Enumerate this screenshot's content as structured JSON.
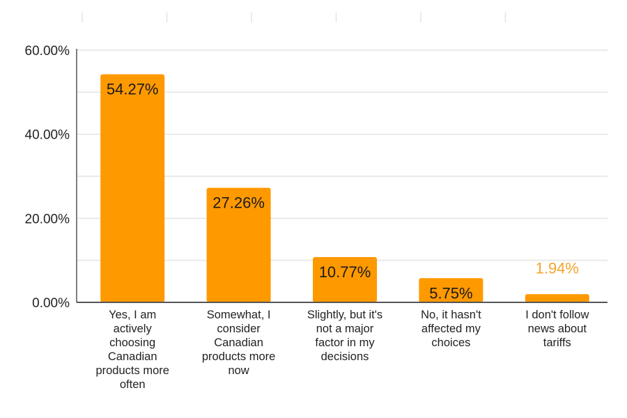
{
  "chart_data": {
    "type": "bar",
    "title": "",
    "xlabel": "",
    "ylabel": "",
    "categories": [
      [
        "Yes, I am",
        "actively",
        "choosing",
        "Canadian",
        "products more",
        "often"
      ],
      [
        "Somewhat, I",
        "consider",
        "Canadian",
        "products more",
        "now"
      ],
      [
        "Slightly, but it's",
        "not a major",
        "factor in my",
        "decisions"
      ],
      [
        "No, it hasn't",
        "affected my",
        "choices"
      ],
      [
        "I don't follow",
        "news about",
        "tariffs"
      ]
    ],
    "values": [
      54.27,
      27.26,
      10.77,
      5.75,
      1.94
    ],
    "data_labels": [
      "54.27%",
      "27.26%",
      "10.77%",
      "5.75%",
      "1.94%"
    ],
    "ylim": [
      0,
      60
    ],
    "y_ticks": [
      0,
      20,
      40,
      60
    ],
    "y_tick_labels": [
      "0.00%",
      "20.00%",
      "40.00%",
      "60.00%"
    ],
    "grid": true,
    "legend": "none",
    "colors": {
      "bar": "#ff9900",
      "label_inside": "#1a1a1a",
      "label_outside": "#f3a42a",
      "grid": "#e3e3e3",
      "axis": "#555555"
    }
  }
}
